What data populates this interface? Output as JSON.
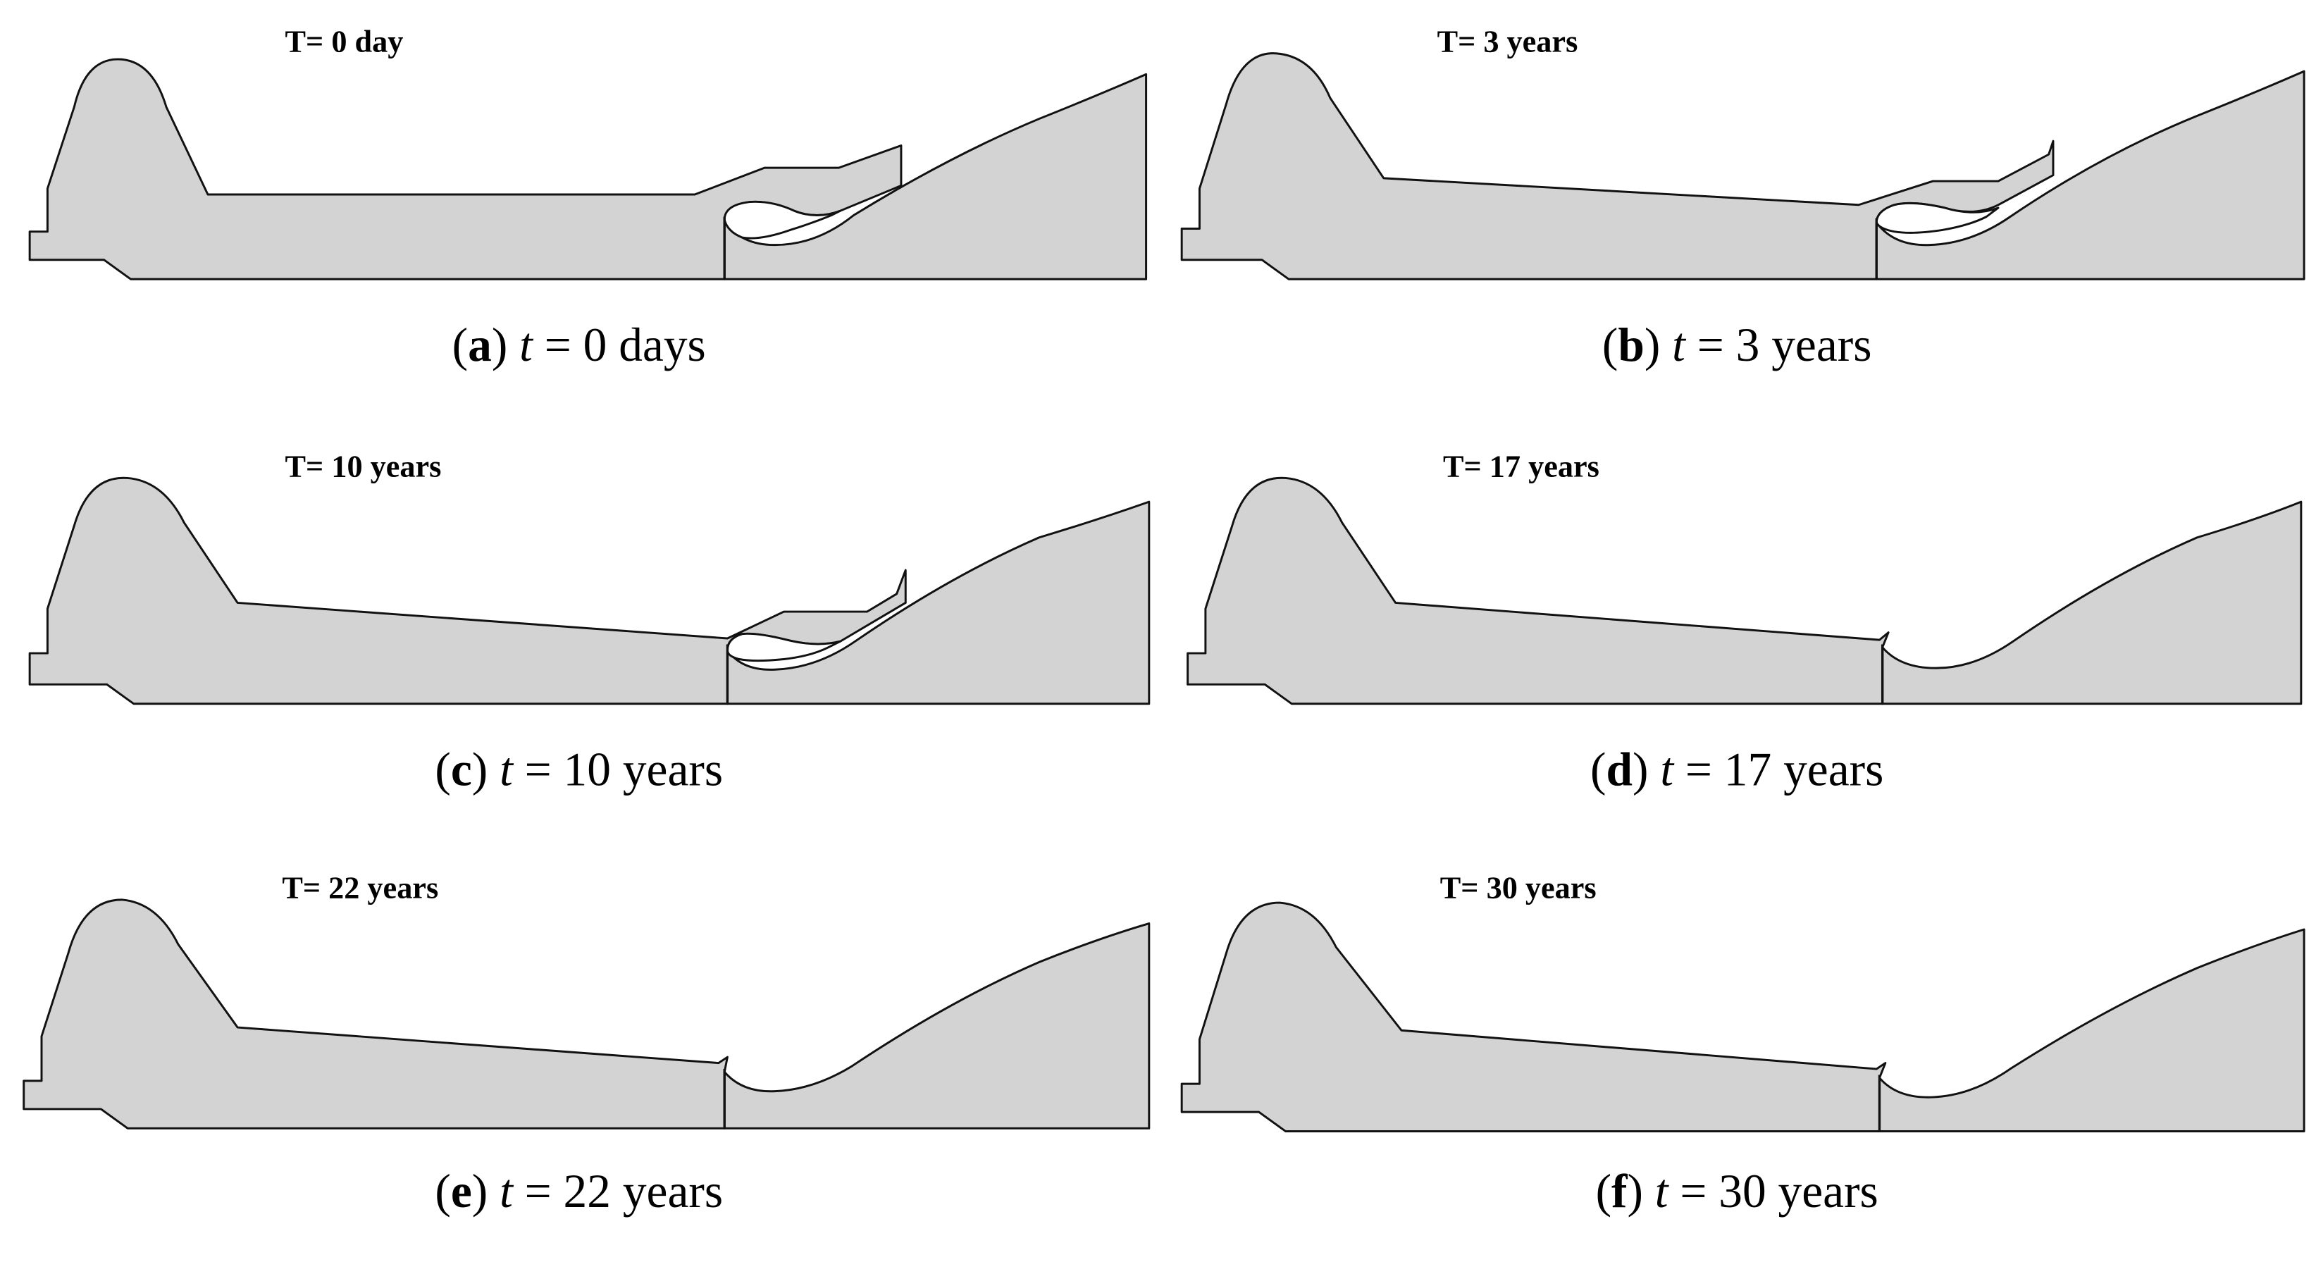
{
  "figure": {
    "panels": [
      {
        "id": "a",
        "plot_label": "T= 0 day",
        "caption_letter": "a",
        "caption_var": "t",
        "caption_eq": " = 0 days",
        "state": "initial"
      },
      {
        "id": "b",
        "plot_label": "T= 3 years",
        "caption_letter": "b",
        "caption_var": "t",
        "caption_eq": " = 3 years",
        "state": "partial"
      },
      {
        "id": "c",
        "plot_label": "T= 10 years",
        "caption_letter": "c",
        "caption_var": "t",
        "caption_eq": " = 10 years",
        "state": "partial"
      },
      {
        "id": "d",
        "plot_label": "T= 17 years",
        "caption_letter": "d",
        "caption_var": "t",
        "caption_eq": " = 17 years",
        "state": "closed"
      },
      {
        "id": "e",
        "plot_label": "T= 22 years",
        "caption_letter": "e",
        "caption_var": "t",
        "caption_eq": " = 22 years",
        "state": "closed"
      },
      {
        "id": "f",
        "plot_label": "T= 30 years",
        "caption_letter": "f",
        "caption_var": "t",
        "caption_eq": " = 30 years",
        "state": "closed"
      }
    ],
    "colors": {
      "section_fill": "#d3d3d3",
      "outline": "#111111",
      "background": "#ffffff"
    }
  }
}
